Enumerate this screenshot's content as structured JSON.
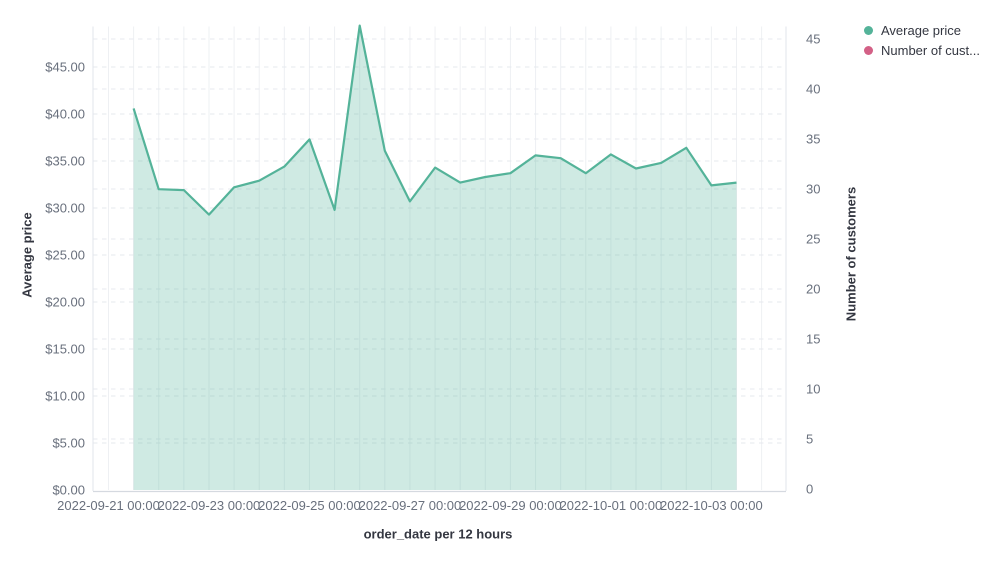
{
  "chart": {
    "left_axis_title": "Average price",
    "right_axis_title": "Number of customers",
    "x_axis_title": "order_date per 12 hours",
    "legend": {
      "items": [
        {
          "label": "Average price",
          "color": "#54B399"
        },
        {
          "label": "Number of cust...",
          "color": "#D36086"
        }
      ]
    }
  },
  "chart_data": {
    "type": "area",
    "title": "",
    "xlabel": "order_date per 12 hours",
    "ylabel_left": "Average price",
    "ylabel_right": "Number of customers",
    "x_domain_start": "2022-09-21 00:00",
    "x_interval": "12 hours",
    "grid": "on",
    "legend_position": "right",
    "left_axis_range": [
      0,
      49.8
    ],
    "right_axis_range": [
      0,
      46.3
    ],
    "left_ticks": [
      {
        "value": 0,
        "label": "$0.00"
      },
      {
        "value": 5,
        "label": "$5.00"
      },
      {
        "value": 10,
        "label": "$10.00"
      },
      {
        "value": 15,
        "label": "$15.00"
      },
      {
        "value": 20,
        "label": "$20.00"
      },
      {
        "value": 25,
        "label": "$25.00"
      },
      {
        "value": 30,
        "label": "$30.00"
      },
      {
        "value": 35,
        "label": "$35.00"
      },
      {
        "value": 40,
        "label": "$40.00"
      },
      {
        "value": 45,
        "label": "$45.00"
      }
    ],
    "right_ticks": [
      0,
      5,
      10,
      15,
      20,
      25,
      30,
      35,
      40,
      45
    ],
    "x_ticks": [
      "2022-09-21 00:00",
      "2022-09-23 00:00",
      "2022-09-25 00:00",
      "2022-09-27 00:00",
      "2022-09-29 00:00",
      "2022-10-01 00:00",
      "2022-10-03 00:00"
    ],
    "series": [
      {
        "name": "Average price",
        "axis": "left",
        "color": "#54B399",
        "fill_opacity": 0.28,
        "x": [
          "2022-09-21 12:00",
          "2022-09-22 00:00",
          "2022-09-22 12:00",
          "2022-09-23 00:00",
          "2022-09-23 12:00",
          "2022-09-24 00:00",
          "2022-09-24 12:00",
          "2022-09-25 00:00",
          "2022-09-25 12:00",
          "2022-09-26 00:00",
          "2022-09-26 12:00",
          "2022-09-27 00:00",
          "2022-09-27 12:00",
          "2022-09-28 00:00",
          "2022-09-28 12:00",
          "2022-09-29 00:00",
          "2022-09-29 12:00",
          "2022-09-30 00:00",
          "2022-09-30 12:00",
          "2022-10-01 00:00",
          "2022-10-01 12:00",
          "2022-10-02 00:00",
          "2022-10-02 12:00",
          "2022-10-03 00:00",
          "2022-10-03 12:00"
        ],
        "values": [
          40.6,
          32.0,
          31.9,
          29.3,
          32.2,
          32.9,
          34.4,
          37.3,
          29.8,
          49.4,
          36.1,
          30.7,
          34.3,
          32.7,
          33.3,
          33.7,
          35.6,
          35.3,
          33.7,
          35.7,
          34.2,
          34.8,
          36.4,
          32.4,
          32.7
        ]
      },
      {
        "name": "Number of customers",
        "axis": "right",
        "color": "#D36086",
        "values": []
      }
    ]
  }
}
